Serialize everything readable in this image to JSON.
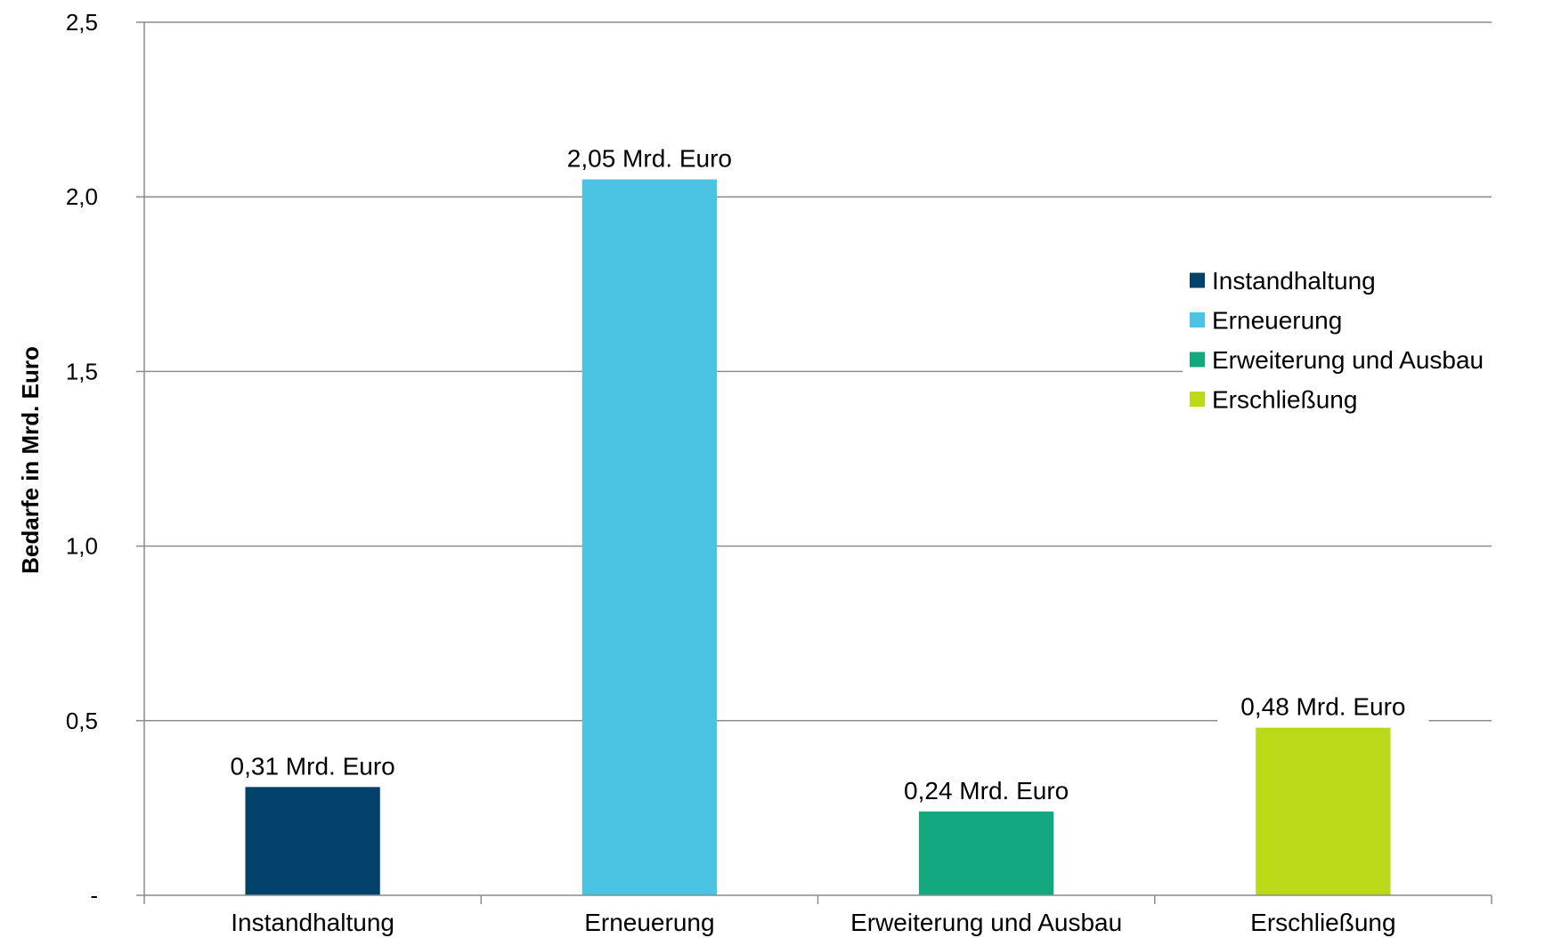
{
  "chart_data": {
    "type": "bar",
    "categories": [
      "Instandhaltung",
      "Erneuerung",
      "Erweiterung und Ausbau",
      "Erschließung"
    ],
    "values": [
      0.31,
      2.05,
      0.24,
      0.48
    ],
    "data_labels": [
      "0,31 Mrd. Euro",
      "2,05 Mrd. Euro",
      "0,24 Mrd. Euro",
      "0,48 Mrd. Euro"
    ],
    "colors": [
      "#02426a",
      "#4bc3e3",
      "#13a87e",
      "#bcd919"
    ],
    "ylabel": "Bedarfe in Mrd. Euro",
    "xlabel": "",
    "ylim": [
      0,
      2.5
    ],
    "yticks": [
      0,
      0.5,
      1.0,
      1.5,
      2.0,
      2.5
    ],
    "ytick_labels": [
      "-",
      "0,5",
      "1,0",
      "1,5",
      "2,0",
      "2,5"
    ],
    "grid": true,
    "legend": {
      "placement": "right",
      "entries": [
        "Instandhaltung",
        "Erneuerung",
        "Erweiterung und Ausbau",
        "Erschließung"
      ]
    }
  }
}
